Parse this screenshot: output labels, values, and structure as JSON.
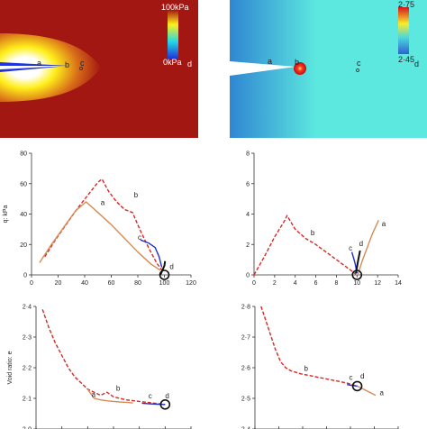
{
  "colors": {
    "contour_low": "#a31712",
    "contour_high": "#ffef1a",
    "contour_blue": "#2233d8",
    "ratio_background": "#5ce7df",
    "ratio_left": "#2f86d2",
    "red_curve": "#d62926",
    "tan_curve": "#d58b55",
    "blue_curve": "#2330c3",
    "black": "#111111",
    "white_text": "#ffffff",
    "dark_text": "#1e1e1e"
  },
  "contours": [
    {
      "kind": "pressure",
      "colorbar_top": "100kPa",
      "colorbar_bottom": "0kPa",
      "point_labels": [
        "a",
        "b",
        "c",
        "d"
      ]
    },
    {
      "kind": "void_ratio",
      "colorbar_top": "2·75",
      "colorbar_bottom": "2·45",
      "point_labels": [
        "a",
        "b",
        "c",
        "d"
      ]
    }
  ],
  "chart_data": [
    {
      "type": "line",
      "ylabel": "q: kPa",
      "xlim": [
        0,
        120
      ],
      "ylim": [
        0,
        80
      ],
      "xticks": [
        0,
        20,
        40,
        60,
        80,
        100,
        120
      ],
      "yticks": [
        0,
        20,
        40,
        60,
        80
      ],
      "grid": false,
      "series": [
        {
          "style": "dashed",
          "color": "red_curve",
          "x": [
            10,
            18,
            26,
            34,
            42,
            50,
            53,
            58,
            64,
            70,
            76,
            82,
            88,
            94,
            99
          ],
          "y": [
            12,
            23,
            33,
            43,
            52,
            61,
            63,
            55,
            48,
            43,
            41,
            29,
            18,
            8,
            2
          ]
        },
        {
          "style": "solid",
          "color": "tan_curve",
          "x": [
            6,
            15,
            24,
            33,
            41,
            50,
            60,
            70,
            80,
            90,
            97
          ],
          "y": [
            8,
            20,
            31,
            42,
            48,
            41,
            33,
            24,
            15,
            7,
            3
          ]
        },
        {
          "style": "solid",
          "color": "blue_curve",
          "x": [
            82,
            88,
            93,
            96,
            98
          ],
          "y": [
            23,
            21,
            18,
            12,
            5
          ]
        },
        {
          "style": "solid",
          "color": "black",
          "x": [
            97,
            98.5,
            100,
            100.5
          ],
          "y": [
            0,
            3,
            6,
            9
          ]
        }
      ],
      "marker": {
        "x": 100,
        "y": 0
      },
      "labels": [
        {
          "text": "a",
          "x": 52,
          "y": 46
        },
        {
          "text": "b",
          "x": 77,
          "y": 51
        },
        {
          "text": "c",
          "x": 80,
          "y": 23
        },
        {
          "text": "d",
          "x": 104,
          "y": 4
        }
      ]
    },
    {
      "type": "line",
      "ylabel": "",
      "xlim": [
        0,
        14
      ],
      "ylim": [
        0,
        8
      ],
      "xticks": [
        0,
        2,
        4,
        6,
        8,
        10,
        12,
        14
      ],
      "yticks": [
        0,
        2,
        4,
        6,
        8
      ],
      "grid": false,
      "series": [
        {
          "style": "dashed",
          "color": "red_curve",
          "x": [
            0,
            1,
            2,
            3,
            3.2,
            4,
            5,
            6,
            7,
            8,
            9,
            9.9
          ],
          "y": [
            0,
            1.2,
            2.5,
            3.6,
            3.9,
            3.0,
            2.4,
            2.0,
            1.5,
            1.0,
            0.5,
            0.05
          ]
        },
        {
          "style": "solid",
          "color": "tan_curve",
          "x": [
            10.1,
            10.5,
            11,
            11.5,
            12.1
          ],
          "y": [
            0.05,
            0.9,
            1.8,
            2.7,
            3.6
          ]
        },
        {
          "style": "solid",
          "color": "blue_curve",
          "x": [
            9.5,
            9.8,
            10
          ],
          "y": [
            1.5,
            0.8,
            0.1
          ]
        },
        {
          "style": "solid",
          "color": "black",
          "x": [
            9.9,
            10.1,
            10.3
          ],
          "y": [
            0.1,
            0.9,
            1.6
          ]
        }
      ],
      "marker": {
        "x": 10,
        "y": 0
      },
      "labels": [
        {
          "text": "a",
          "x": 12.4,
          "y": 3.2
        },
        {
          "text": "b",
          "x": 5.5,
          "y": 2.6
        },
        {
          "text": "c",
          "x": 9.2,
          "y": 1.6
        },
        {
          "text": "d",
          "x": 10.2,
          "y": 1.9
        }
      ]
    },
    {
      "type": "line",
      "ylabel": "Void ratio: e",
      "xlim": [
        0,
        120
      ],
      "ylim": [
        2.0,
        2.4
      ],
      "yticks": [
        2.0,
        2.1,
        2.2,
        2.3,
        2.4
      ],
      "ytick_labels": [
        "2·0",
        "2·1",
        "2·2",
        "2·3",
        "2·4"
      ],
      "grid": false,
      "series": [
        {
          "style": "dashed",
          "color": "red_curve",
          "x": [
            5,
            10,
            15,
            20,
            25,
            30,
            35,
            40,
            45,
            50,
            55,
            60,
            65,
            70,
            80,
            90,
            100
          ],
          "y": [
            2.39,
            2.33,
            2.28,
            2.24,
            2.2,
            2.17,
            2.15,
            2.13,
            2.12,
            2.11,
            2.12,
            2.105,
            2.1,
            2.095,
            2.09,
            2.085,
            2.08
          ]
        },
        {
          "style": "solid",
          "color": "tan_curve",
          "x": [
            40,
            45,
            50,
            55,
            60,
            65,
            70,
            75
          ],
          "y": [
            2.13,
            2.1,
            2.095,
            2.092,
            2.09,
            2.088,
            2.087,
            2.085
          ]
        },
        {
          "style": "solid",
          "color": "blue_curve",
          "x": [
            82,
            88,
            94,
            100
          ],
          "y": [
            2.084,
            2.082,
            2.081,
            2.08
          ]
        }
      ],
      "marker": {
        "x": 100,
        "y": 2.08
      },
      "labels": [
        {
          "text": "a",
          "x": 43,
          "y": 2.105
        },
        {
          "text": "b",
          "x": 62,
          "y": 2.125
        },
        {
          "text": "c",
          "x": 87,
          "y": 2.1
        },
        {
          "text": "d",
          "x": 100,
          "y": 2.1
        }
      ]
    },
    {
      "type": "line",
      "ylabel": "",
      "xlim": [
        0,
        14
      ],
      "ylim": [
        2.4,
        2.8
      ],
      "yticks": [
        2.4,
        2.5,
        2.6,
        2.7,
        2.8
      ],
      "ytick_labels": [
        "2·4",
        "2·5",
        "2·6",
        "2·7",
        "2·8"
      ],
      "grid": false,
      "series": [
        {
          "style": "dashed",
          "color": "red_curve",
          "x": [
            0.6,
            1.0,
            1.5,
            2.0,
            2.5,
            3.0,
            3.5,
            4.5,
            6.0,
            7.5,
            9.0,
            10.0
          ],
          "y": [
            2.8,
            2.76,
            2.71,
            2.66,
            2.62,
            2.6,
            2.59,
            2.58,
            2.57,
            2.56,
            2.55,
            2.54
          ]
        },
        {
          "style": "solid",
          "color": "tan_curve",
          "x": [
            10,
            10.6,
            11.2,
            11.8
          ],
          "y": [
            2.54,
            2.53,
            2.52,
            2.51
          ]
        },
        {
          "style": "solid",
          "color": "blue_curve",
          "x": [
            9.0,
            9.5,
            10
          ],
          "y": [
            2.545,
            2.542,
            2.54
          ]
        }
      ],
      "marker": {
        "x": 10,
        "y": 2.54
      },
      "labels": [
        {
          "text": "a",
          "x": 12.2,
          "y": 2.51
        },
        {
          "text": "b",
          "x": 4.8,
          "y": 2.59
        },
        {
          "text": "c",
          "x": 9.2,
          "y": 2.56
        },
        {
          "text": "d",
          "x": 10.3,
          "y": 2.565
        }
      ]
    }
  ]
}
